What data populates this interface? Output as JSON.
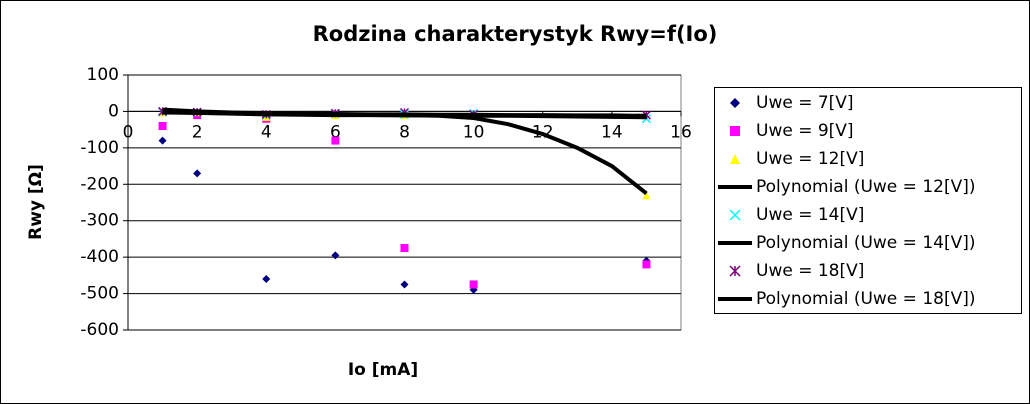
{
  "chart_data": {
    "type": "scatter",
    "title": "Rodzina charakterystyk Rwy=f(Io)",
    "x_label": "Io [mA]",
    "y_label": "Rwy [Ω]",
    "xlim": [
      0,
      16
    ],
    "xticks": [
      0,
      2,
      4,
      6,
      8,
      10,
      12,
      14,
      16
    ],
    "ylim": [
      -600,
      100
    ],
    "yticks": [
      -600,
      -500,
      -400,
      -300,
      -200,
      -100,
      0,
      100
    ],
    "grid": true,
    "legend": "right",
    "series": [
      {
        "name": "Uwe = 7[V]",
        "color": "#000080",
        "marker": "diamond",
        "x": [
          1,
          2,
          4,
          6,
          8,
          10,
          15
        ],
        "values": [
          -80,
          -170,
          -460,
          -395,
          -475,
          -490,
          -410
        ]
      },
      {
        "name": "Uwe = 9[V]",
        "color": "#ff00ff",
        "marker": "square",
        "x": [
          1,
          2,
          4,
          6,
          8,
          10,
          15
        ],
        "values": [
          -40,
          -10,
          -20,
          -80,
          -375,
          -475,
          -420
        ]
      },
      {
        "name": "Uwe = 12[V]",
        "color": "#ffff00",
        "marker": "triangle",
        "x": [
          1,
          2,
          4,
          6,
          8,
          10,
          15
        ],
        "values": [
          -3,
          -2,
          -15,
          -10,
          -10,
          -10,
          -230
        ]
      },
      {
        "name": "Polynomial (Uwe = 12[V])",
        "color": "#000000",
        "marker": "line",
        "x": [
          1,
          2,
          3,
          4,
          5,
          6,
          7,
          8,
          9,
          10,
          11,
          12,
          13,
          14,
          15
        ],
        "values": [
          5,
          0,
          -3,
          -5,
          -7,
          -8,
          -9,
          -10,
          -12,
          -18,
          -35,
          -62,
          -100,
          -150,
          -225
        ]
      },
      {
        "name": "Uwe = 14[V]",
        "color": "#00ffff",
        "marker": "x",
        "x": [
          1,
          2,
          4,
          6,
          8,
          10,
          15
        ],
        "values": [
          -2,
          -3,
          -10,
          -5,
          -8,
          -5,
          -20
        ]
      },
      {
        "name": "Polynomial (Uwe = 14[V])",
        "color": "#000000",
        "marker": "line",
        "x": [
          1,
          2,
          3,
          4,
          5,
          6,
          7,
          8,
          9,
          10,
          11,
          12,
          13,
          14,
          15
        ],
        "values": [
          -2,
          -4,
          -6,
          -8,
          -9,
          -10,
          -10,
          -11,
          -11,
          -12,
          -12,
          -13,
          -14,
          -15,
          -16
        ]
      },
      {
        "name": "Uwe = 18[V]",
        "color": "#800080",
        "marker": "star",
        "x": [
          1,
          2,
          4,
          6,
          8,
          10,
          15
        ],
        "values": [
          0,
          -2,
          -8,
          -5,
          -3,
          -8,
          -10
        ]
      },
      {
        "name": "Polynomial (Uwe = 18[V])",
        "color": "#000000",
        "marker": "line",
        "x": [
          1,
          2,
          3,
          4,
          5,
          6,
          7,
          8,
          9,
          10,
          11,
          12,
          13,
          14,
          15
        ],
        "values": [
          -3,
          -4,
          -5,
          -6,
          -7,
          -7,
          -8,
          -8,
          -9,
          -9,
          -10,
          -10,
          -11,
          -11,
          -12
        ]
      }
    ]
  }
}
